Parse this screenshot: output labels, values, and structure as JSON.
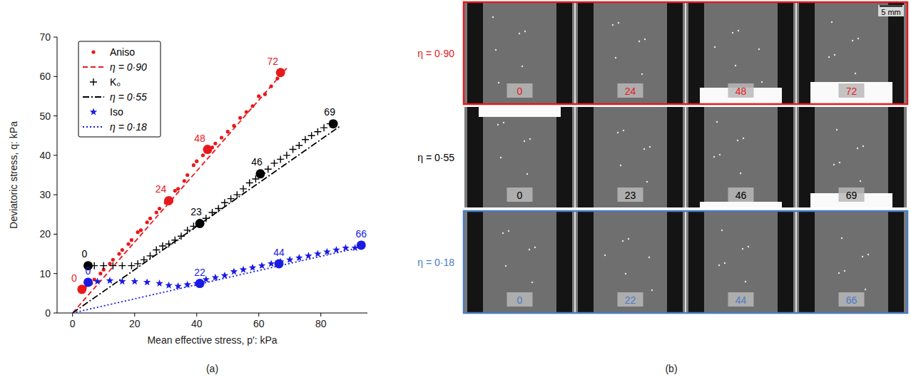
{
  "chart_data": {
    "type": "scatter",
    "x_label": "Mean effective stress, p′: kPa",
    "y_label": "Deviatoric stress, q: kPa",
    "xlim": [
      -5,
      95
    ],
    "ylim": [
      0,
      70
    ],
    "xticks": [
      0,
      20,
      40,
      60,
      80
    ],
    "yticks": [
      0,
      10,
      20,
      30,
      40,
      50,
      60,
      70
    ],
    "grid": false,
    "legend": "upper-left",
    "series": [
      {
        "name": "Aniso",
        "type": "scatter",
        "color": "#e8191c",
        "marker": "dot",
        "x": [
          3,
          4,
          6,
          7,
          9,
          10,
          12,
          13,
          15,
          16,
          18,
          19,
          21,
          22,
          24,
          25,
          27,
          28,
          30,
          31,
          33,
          34,
          36,
          37,
          39,
          40,
          42,
          43,
          45,
          46,
          48,
          50,
          52,
          54,
          56,
          58,
          60,
          62,
          64,
          66,
          67
        ],
        "values": [
          6,
          6.5,
          7.5,
          8.5,
          10,
          11,
          12.5,
          13.5,
          15,
          16,
          17.5,
          18.5,
          20.5,
          21,
          23,
          24,
          25.5,
          26.5,
          28,
          28.5,
          31,
          31.5,
          33.5,
          35,
          37.5,
          38.5,
          40,
          41.5,
          42,
          43,
          44.5,
          46,
          47.5,
          49.5,
          51,
          52.5,
          55,
          55.5,
          57.5,
          59.5,
          61
        ],
        "key_points": {
          "x": [
            3,
            31,
            43.5,
            67
          ],
          "values": [
            6,
            28.5,
            41.5,
            61
          ],
          "scan": [
            0,
            24,
            48,
            72
          ]
        }
      },
      {
        "name": "η = 0·90",
        "type": "line",
        "color": "#e8191c",
        "line_style": "dashed",
        "x": [
          0,
          69
        ],
        "values": [
          0,
          62.1
        ]
      },
      {
        "name": "K₀",
        "type": "scatter",
        "color": "#000000",
        "marker": "plus",
        "x": [
          7,
          10,
          13,
          16,
          19,
          21,
          23,
          25,
          27,
          29,
          31,
          33,
          35,
          37,
          39,
          41,
          43,
          45,
          47,
          49,
          51,
          53,
          55,
          57,
          59,
          61,
          63,
          65,
          67,
          69,
          71,
          73,
          75,
          77,
          79,
          81,
          83
        ],
        "values": [
          12,
          12,
          12,
          12,
          12,
          12.5,
          13.5,
          14.5,
          16,
          17,
          17.5,
          18.5,
          19.5,
          21,
          22,
          23,
          24,
          25.5,
          26.5,
          28,
          29,
          30,
          31.5,
          33,
          34,
          35.5,
          36.5,
          38,
          39,
          40,
          41.5,
          42.5,
          44,
          45,
          46,
          47,
          48
        ],
        "key_points": {
          "x": [
            5,
            41,
            60.5,
            84
          ],
          "values": [
            12,
            22.7,
            35.3,
            48
          ],
          "scan": [
            0,
            23,
            46,
            69
          ]
        }
      },
      {
        "name": "η = 0·55",
        "type": "line",
        "color": "#000000",
        "line_style": "dashdot",
        "x": [
          0,
          86
        ],
        "values": [
          0,
          47.3
        ]
      },
      {
        "name": "Iso",
        "type": "scatter",
        "color": "#1a1ae6",
        "marker": "star",
        "x": [
          5,
          8,
          12,
          16,
          20,
          24,
          28,
          31,
          34,
          37,
          40,
          43,
          46,
          49,
          52,
          55,
          58,
          61,
          64,
          67,
          70,
          73,
          76,
          79,
          82,
          85,
          88,
          91,
          93
        ],
        "values": [
          8,
          8,
          8.2,
          8,
          8,
          7.8,
          7.5,
          7,
          6.8,
          7.2,
          7.5,
          8.5,
          9,
          9.5,
          10.5,
          11,
          11.5,
          12,
          12.5,
          13,
          13.5,
          14,
          14.5,
          15,
          15.5,
          16,
          16.5,
          16.5,
          17
        ],
        "key_points": {
          "x": [
            5,
            41,
            66.5,
            93
          ],
          "values": [
            7.8,
            7.5,
            12.5,
            17.2
          ],
          "scan": [
            0,
            22,
            44,
            66
          ]
        }
      },
      {
        "name": "η = 0·18",
        "type": "line",
        "color": "#1a1ae6",
        "line_style": "dotted",
        "x": [
          0,
          93
        ],
        "values": [
          0,
          16.7
        ]
      }
    ]
  },
  "panel_labels": [
    "(a)",
    "(b)"
  ],
  "panel_b": {
    "scale_bar": "5 mm",
    "rows": [
      {
        "label": "η = 0·90",
        "color": "#e8191c",
        "framed": true,
        "scans": [
          0,
          24,
          48,
          72
        ]
      },
      {
        "label": "η = 0·55",
        "color": "#000000",
        "framed": false,
        "scans": [
          0,
          23,
          46,
          69
        ]
      },
      {
        "label": "η = 0·18",
        "color": "#4a7cc4",
        "framed": true,
        "scans": [
          0,
          22,
          44,
          66
        ]
      }
    ]
  }
}
